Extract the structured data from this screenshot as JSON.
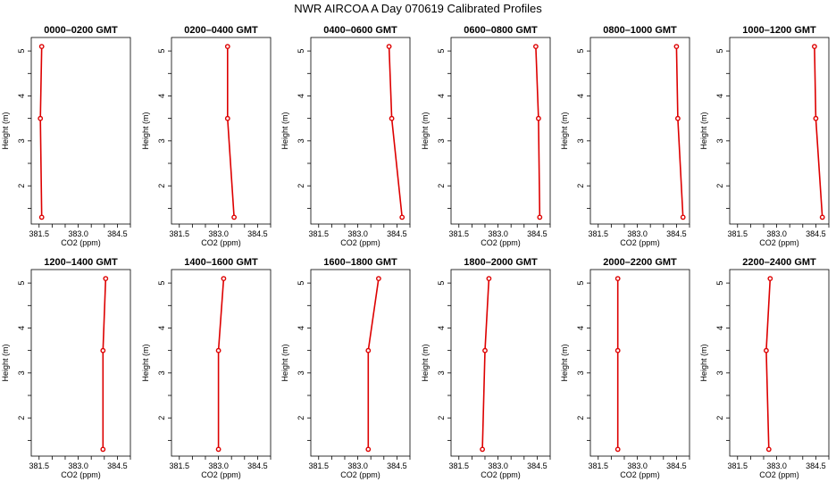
{
  "title": "NWR AIRCOA A  Day 070619  Calibrated Profiles",
  "colors": {
    "line": "#dd0000",
    "point_fill": "#ffffff",
    "axis": "#000000"
  },
  "chart_data": [
    {
      "type": "line",
      "title": "0000–0200 GMT",
      "xlabel": "CO2 (ppm)",
      "ylabel": "Height (m)",
      "xlim": [
        381.2,
        385.0
      ],
      "ylim": [
        1.15,
        5.3
      ],
      "xticks": [
        381.5,
        383.0,
        384.5
      ],
      "yticks": [
        2,
        3,
        4,
        5
      ],
      "series": [
        {
          "x": [
            381.6,
            381.55,
            381.6
          ],
          "y": [
            1.3,
            3.5,
            5.1
          ]
        }
      ]
    },
    {
      "type": "line",
      "title": "0200–0400 GMT",
      "xlabel": "CO2 (ppm)",
      "ylabel": "Height (m)",
      "xlim": [
        381.2,
        385.0
      ],
      "ylim": [
        1.15,
        5.3
      ],
      "xticks": [
        381.5,
        383.0,
        384.5
      ],
      "yticks": [
        2,
        3,
        4,
        5
      ],
      "series": [
        {
          "x": [
            383.6,
            383.35,
            383.35
          ],
          "y": [
            1.3,
            3.5,
            5.1
          ]
        }
      ]
    },
    {
      "type": "line",
      "title": "0400–0600 GMT",
      "xlabel": "CO2 (ppm)",
      "ylabel": "Height (m)",
      "xlim": [
        381.2,
        385.0
      ],
      "ylim": [
        1.15,
        5.3
      ],
      "xticks": [
        381.5,
        383.0,
        384.5
      ],
      "yticks": [
        2,
        3,
        4,
        5
      ],
      "series": [
        {
          "x": [
            384.7,
            384.3,
            384.2
          ],
          "y": [
            1.3,
            3.5,
            5.1
          ]
        }
      ]
    },
    {
      "type": "line",
      "title": "0600–0800 GMT",
      "xlabel": "CO2 (ppm)",
      "ylabel": "Height (m)",
      "xlim": [
        381.2,
        385.0
      ],
      "ylim": [
        1.15,
        5.3
      ],
      "xticks": [
        381.5,
        383.0,
        384.5
      ],
      "yticks": [
        2,
        3,
        4,
        5
      ],
      "series": [
        {
          "x": [
            384.6,
            384.55,
            384.45
          ],
          "y": [
            1.3,
            3.5,
            5.1
          ]
        }
      ]
    },
    {
      "type": "line",
      "title": "0800–1000 GMT",
      "xlabel": "CO2 (ppm)",
      "ylabel": "Height (m)",
      "xlim": [
        381.2,
        385.0
      ],
      "ylim": [
        1.15,
        5.3
      ],
      "xticks": [
        381.5,
        383.0,
        384.5
      ],
      "yticks": [
        2,
        3,
        4,
        5
      ],
      "series": [
        {
          "x": [
            384.75,
            384.55,
            384.5
          ],
          "y": [
            1.3,
            3.5,
            5.1
          ]
        }
      ]
    },
    {
      "type": "line",
      "title": "1000–1200 GMT",
      "xlabel": "CO2 (ppm)",
      "ylabel": "Height (m)",
      "xlim": [
        381.2,
        385.0
      ],
      "ylim": [
        1.15,
        5.3
      ],
      "xticks": [
        381.5,
        383.0,
        384.5
      ],
      "yticks": [
        2,
        3,
        4,
        5
      ],
      "series": [
        {
          "x": [
            384.75,
            384.5,
            384.45
          ],
          "y": [
            1.3,
            3.5,
            5.1
          ]
        }
      ]
    },
    {
      "type": "line",
      "title": "1200–1400 GMT",
      "xlabel": "CO2 (ppm)",
      "ylabel": "Height (m)",
      "xlim": [
        381.2,
        385.0
      ],
      "ylim": [
        1.15,
        5.3
      ],
      "xticks": [
        381.5,
        383.0,
        384.5
      ],
      "yticks": [
        2,
        3,
        4,
        5
      ],
      "series": [
        {
          "x": [
            383.95,
            383.95,
            384.05
          ],
          "y": [
            1.3,
            3.5,
            5.1
          ]
        }
      ]
    },
    {
      "type": "line",
      "title": "1400–1600 GMT",
      "xlabel": "CO2 (ppm)",
      "ylabel": "Height (m)",
      "xlim": [
        381.2,
        385.0
      ],
      "ylim": [
        1.15,
        5.3
      ],
      "xticks": [
        381.5,
        383.0,
        384.5
      ],
      "yticks": [
        2,
        3,
        4,
        5
      ],
      "series": [
        {
          "x": [
            383.0,
            383.0,
            383.2
          ],
          "y": [
            1.3,
            3.5,
            5.1
          ]
        }
      ]
    },
    {
      "type": "line",
      "title": "1600–1800 GMT",
      "xlabel": "CO2 (ppm)",
      "ylabel": "Height (m)",
      "xlim": [
        381.2,
        385.0
      ],
      "ylim": [
        1.15,
        5.3
      ],
      "xticks": [
        381.5,
        383.0,
        384.5
      ],
      "yticks": [
        2,
        3,
        4,
        5
      ],
      "series": [
        {
          "x": [
            383.4,
            383.4,
            383.8
          ],
          "y": [
            1.3,
            3.5,
            5.1
          ]
        }
      ]
    },
    {
      "type": "line",
      "title": "1800–2000 GMT",
      "xlabel": "CO2 (ppm)",
      "ylabel": "Height (m)",
      "xlim": [
        381.2,
        385.0
      ],
      "ylim": [
        1.15,
        5.3
      ],
      "xticks": [
        381.5,
        383.0,
        384.5
      ],
      "yticks": [
        2,
        3,
        4,
        5
      ],
      "series": [
        {
          "x": [
            382.4,
            382.5,
            382.65
          ],
          "y": [
            1.3,
            3.5,
            5.1
          ]
        }
      ]
    },
    {
      "type": "line",
      "title": "2000–2200 GMT",
      "xlabel": "CO2 (ppm)",
      "ylabel": "Height (m)",
      "xlim": [
        381.2,
        385.0
      ],
      "ylim": [
        1.15,
        5.3
      ],
      "xticks": [
        381.5,
        383.0,
        384.5
      ],
      "yticks": [
        2,
        3,
        4,
        5
      ],
      "series": [
        {
          "x": [
            382.25,
            382.25,
            382.25
          ],
          "y": [
            1.3,
            3.5,
            5.1
          ]
        }
      ]
    },
    {
      "type": "line",
      "title": "2200–2400 GMT",
      "xlabel": "CO2 (ppm)",
      "ylabel": "Height (m)",
      "xlim": [
        381.2,
        385.0
      ],
      "ylim": [
        1.15,
        5.3
      ],
      "xticks": [
        381.5,
        383.0,
        384.5
      ],
      "yticks": [
        2,
        3,
        4,
        5
      ],
      "series": [
        {
          "x": [
            382.7,
            382.6,
            382.75
          ],
          "y": [
            1.3,
            3.5,
            5.1
          ]
        }
      ]
    }
  ]
}
